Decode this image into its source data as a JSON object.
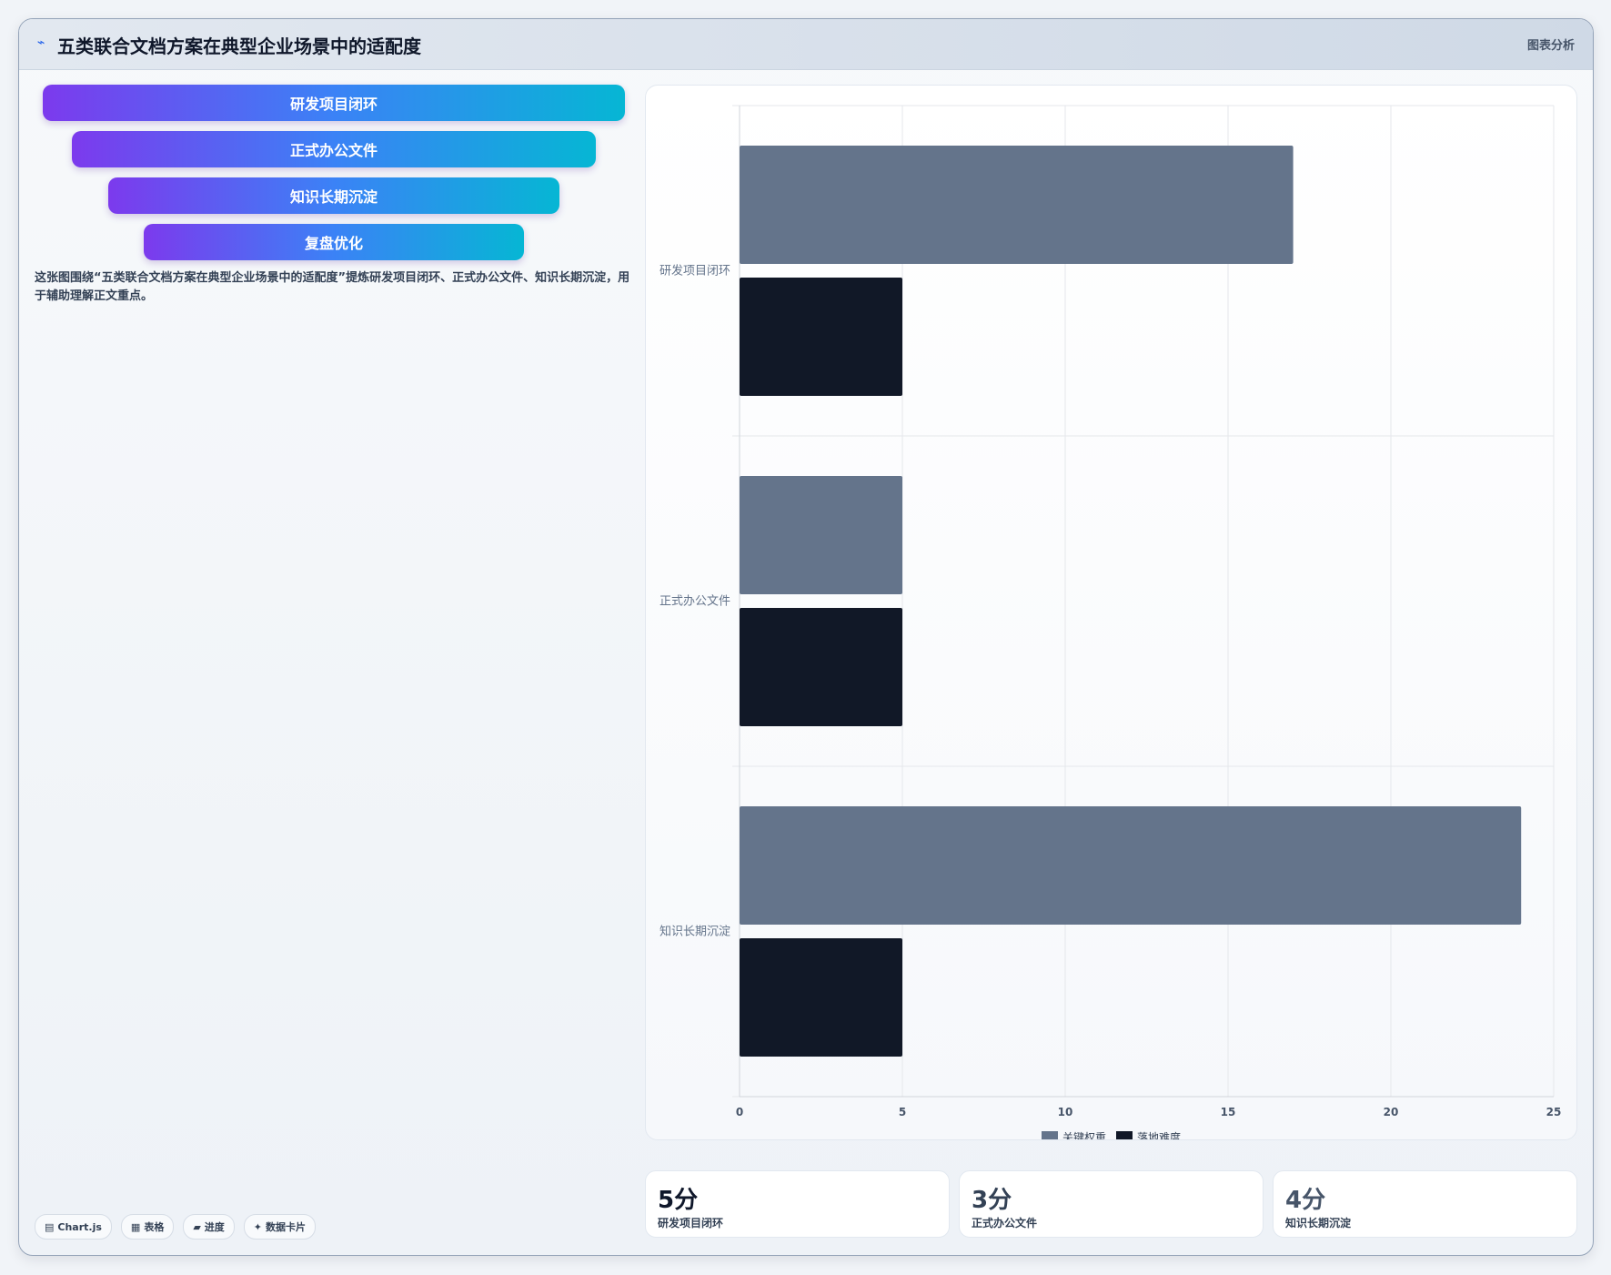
{
  "header": {
    "title": "五类联合文档方案在典型企业场景中的适配度",
    "tag": "图表分析"
  },
  "funnel": [
    "研发项目闭环",
    "正式办公文件",
    "知识长期沉淀",
    "复盘优化"
  ],
  "description": "这张图围绕“五类联合文档方案在典型企业场景中的适配度”提炼研发项目闭环、正式办公文件、知识长期沉淀，用于辅助理解正文重点。",
  "chips": [
    {
      "icon": "chart-icon",
      "glyph": "▤",
      "label": "Chart.js"
    },
    {
      "icon": "table-icon",
      "glyph": "▦",
      "label": "表格"
    },
    {
      "icon": "progress-icon",
      "glyph": "▰",
      "label": "进度"
    },
    {
      "icon": "card-icon",
      "glyph": "✦",
      "label": "数据卡片"
    }
  ],
  "chart_data": {
    "type": "bar",
    "orientation": "horizontal",
    "categories": [
      "研发项目闭环",
      "正式办公文件",
      "知识长期沉淀"
    ],
    "series": [
      {
        "name": "关键权重",
        "color": "#64748b",
        "values": [
          17,
          5,
          24
        ]
      },
      {
        "name": "落地难度",
        "color": "#111827",
        "values": [
          5,
          5,
          5
        ]
      }
    ],
    "xlim": [
      0,
      25
    ],
    "xticks": [
      "0",
      "5",
      "10",
      "15",
      "20",
      "25"
    ],
    "grid": true,
    "legend_position": "bottom"
  },
  "stats": [
    {
      "value": "5分",
      "label": "研发项目闭环",
      "color": "#0f172a"
    },
    {
      "value": "3分",
      "label": "正式办公文件",
      "color": "#334155"
    },
    {
      "value": "4分",
      "label": "知识长期沉淀",
      "color": "#475569"
    }
  ]
}
